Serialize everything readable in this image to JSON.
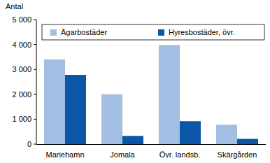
{
  "chart_data": {
    "type": "bar",
    "y_label": "Antal",
    "categories": [
      "Mariehamn",
      "Jomala",
      "Övr. landsb.",
      "Skärgården"
    ],
    "series": [
      {
        "name": "Ägarbostäder",
        "color": "#a2bee2",
        "values": [
          3400,
          2000,
          3980,
          780
        ]
      },
      {
        "name": "Hyresbostäder, övr.",
        "color": "#0b56a6",
        "values": [
          2780,
          330,
          920,
          210
        ]
      }
    ],
    "ylim": [
      0,
      5000
    ],
    "yticks": [
      0,
      {
        "value": 1000,
        "label": "1 000"
      },
      {
        "value": 2000,
        "label": "2 000"
      },
      {
        "value": 3000,
        "label": "3 000"
      },
      {
        "value": 4000,
        "label": "4 000"
      },
      {
        "value": 5000,
        "label": "5 000"
      }
    ],
    "grid": false,
    "legend": "top"
  }
}
